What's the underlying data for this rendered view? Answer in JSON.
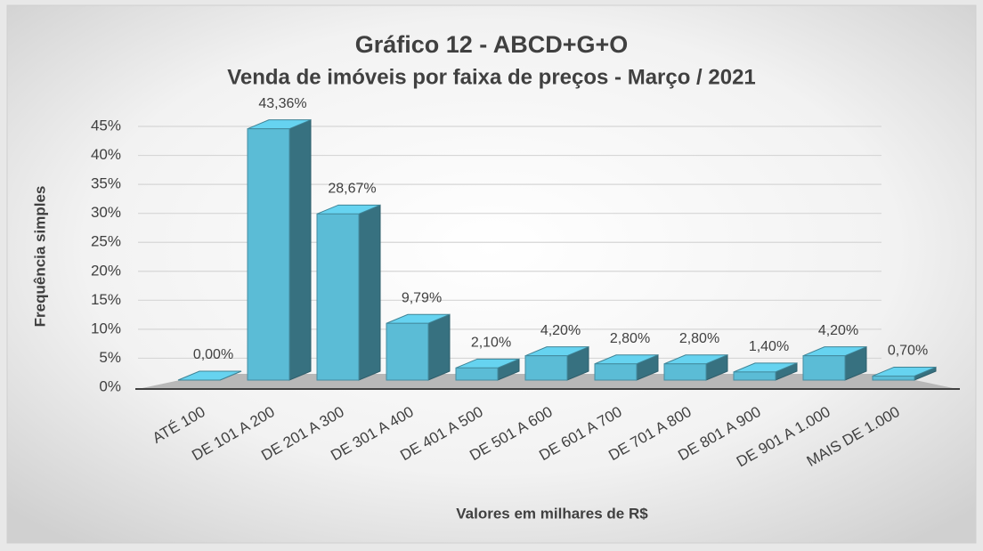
{
  "chart_data": {
    "type": "bar3d",
    "title": "Gráfico  12 - ABCD+G+O",
    "subtitle": "Venda de imóveis por faixa de preços - Março / 2021",
    "y_label": "Frequência simples",
    "x_label": "Valores em milhares de R$",
    "categories": [
      "ATÉ 100",
      "DE 101 A 200",
      "DE 201 A 300",
      "DE 301 A 400",
      "DE 401 A 500",
      "DE 501 A 600",
      "DE 601 A 700",
      "DE 701 A 800",
      "DE 801 A 900",
      "DE 901 A 1.000",
      "MAIS DE 1.000"
    ],
    "values": [
      0,
      43.36,
      28.67,
      9.79,
      2.1,
      4.2,
      2.8,
      2.8,
      1.4,
      4.2,
      0.7
    ],
    "value_labels": [
      "0,00%",
      "43,36%",
      "28,67%",
      "9,79%",
      "2,10%",
      "4,20%",
      "2,80%",
      "2,80%",
      "1,40%",
      "4,20%",
      "0,70%"
    ],
    "color": "#5bbcd6",
    "ylim": [
      0,
      45
    ],
    "yticks": [
      {
        "value": 0,
        "label": "0%"
      },
      {
        "value": 5,
        "label": "5%"
      },
      {
        "value": 10,
        "label": "10%"
      },
      {
        "value": 15,
        "label": "15%"
      },
      {
        "value": 20,
        "label": "20%"
      },
      {
        "value": 25,
        "label": "25%"
      },
      {
        "value": 30,
        "label": "30%"
      },
      {
        "value": 35,
        "label": "35%"
      },
      {
        "value": 40,
        "label": "40%"
      },
      {
        "value": 45,
        "label": "45%"
      }
    ],
    "grid": true
  }
}
